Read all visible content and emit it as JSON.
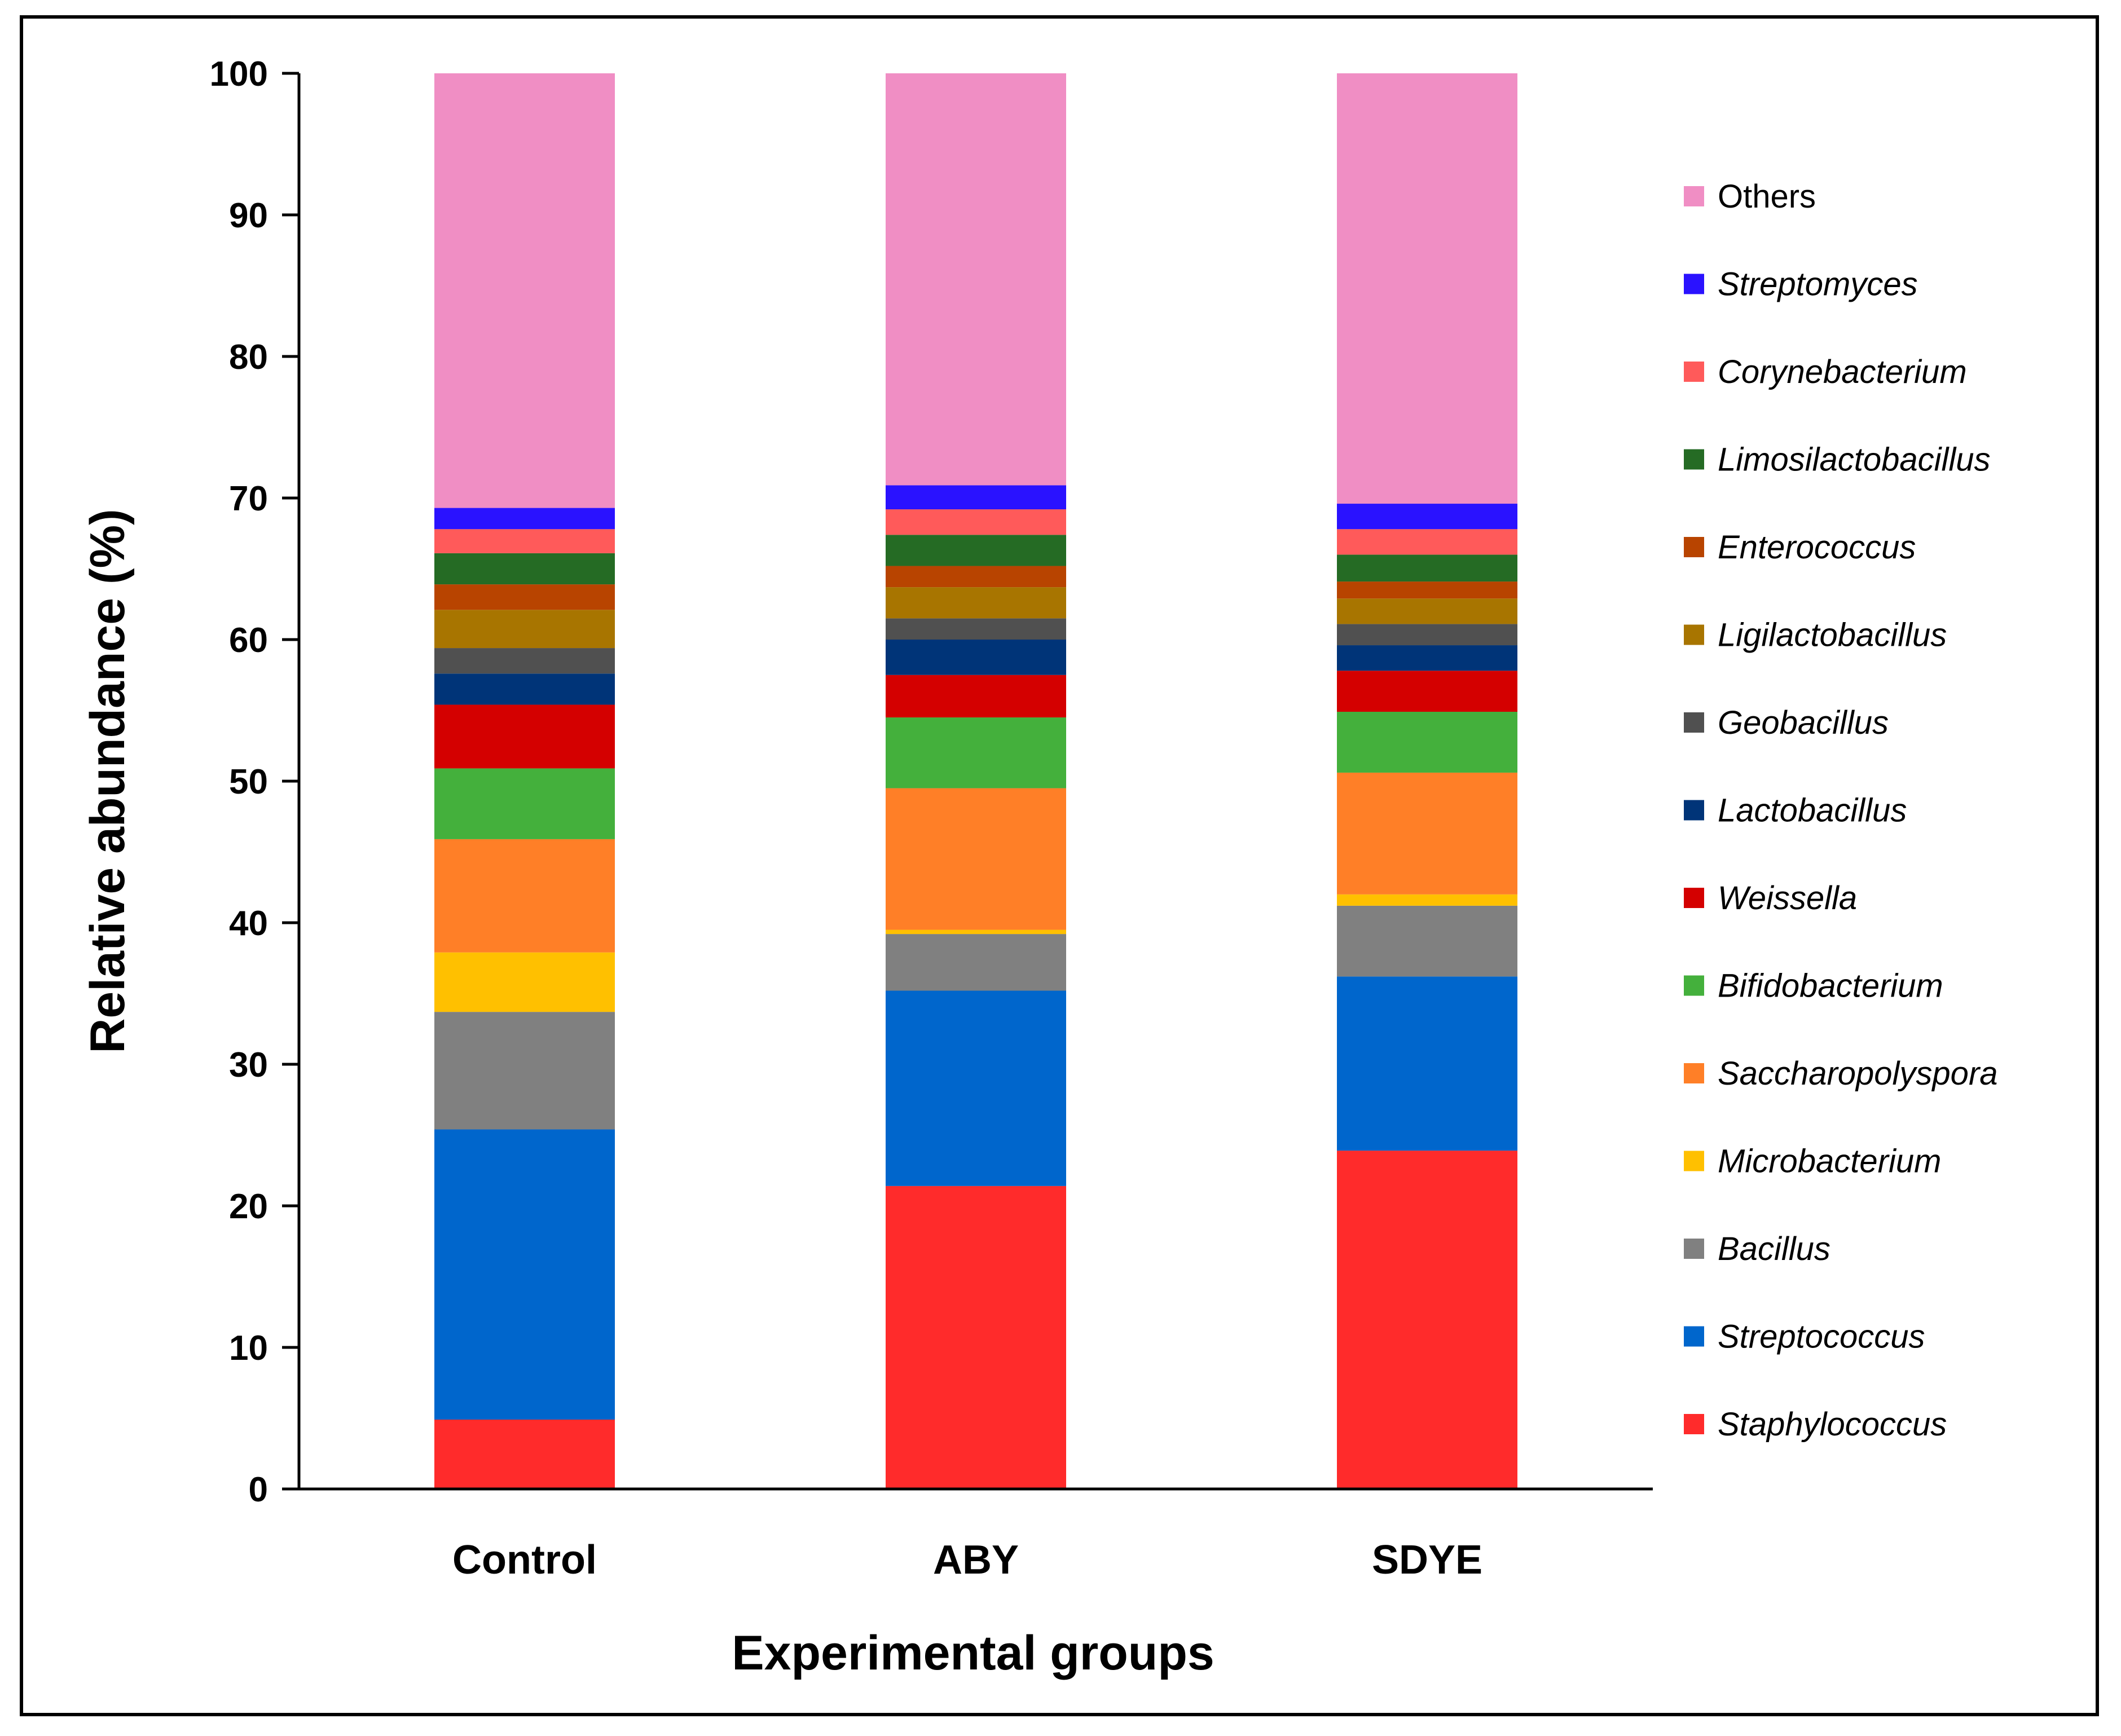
{
  "chart_data": {
    "type": "bar",
    "stacked": true,
    "categories": [
      "Control",
      "ABY",
      "SDYE"
    ],
    "xlabel": "Experimental groups",
    "ylabel": "Relative abundance (%)",
    "ylim": [
      0,
      100
    ],
    "yticks": [
      0,
      10,
      20,
      30,
      40,
      50,
      60,
      70,
      80,
      90,
      100
    ],
    "grid": false,
    "legend_position": "right",
    "series": [
      {
        "name": "Staphylococcus",
        "italic": true,
        "color": "#ff2b2b",
        "values": [
          4.9,
          21.4,
          23.9
        ]
      },
      {
        "name": "Streptococcus",
        "italic": true,
        "color": "#0066cc",
        "values": [
          20.5,
          13.8,
          12.3
        ]
      },
      {
        "name": "Bacillus",
        "italic": true,
        "color": "#808080",
        "values": [
          8.3,
          4.0,
          5.0
        ]
      },
      {
        "name": "Microbacterium",
        "italic": true,
        "color": "#ffc000",
        "values": [
          4.2,
          0.3,
          0.8
        ]
      },
      {
        "name": "Saccharopolyspora",
        "italic": true,
        "color": "#ff7f27",
        "values": [
          8.0,
          10.0,
          8.6
        ]
      },
      {
        "name": "Bifidobacterium",
        "italic": true,
        "color": "#44b03c",
        "values": [
          5.0,
          5.0,
          4.3
        ]
      },
      {
        "name": "Weissella",
        "italic": true,
        "color": "#d40000",
        "values": [
          4.5,
          3.0,
          2.9
        ]
      },
      {
        "name": "Lactobacillus",
        "italic": true,
        "color": "#003478",
        "values": [
          2.2,
          2.5,
          1.8
        ]
      },
      {
        "name": "Geobacillus",
        "italic": true,
        "color": "#505050",
        "values": [
          1.8,
          1.5,
          1.5
        ]
      },
      {
        "name": "Ligilactobacillus",
        "italic": true,
        "color": "#a87500",
        "values": [
          2.7,
          2.2,
          1.8
        ]
      },
      {
        "name": "Enterococcus",
        "italic": true,
        "color": "#b84400",
        "values": [
          1.8,
          1.5,
          1.2
        ]
      },
      {
        "name": "Limosilactobacillus",
        "italic": true,
        "color": "#256b24",
        "values": [
          2.2,
          2.2,
          1.9
        ]
      },
      {
        "name": "Corynebacterium",
        "italic": true,
        "color": "#ff5a5a",
        "values": [
          1.7,
          1.8,
          1.8
        ]
      },
      {
        "name": "Streptomyces",
        "italic": true,
        "color": "#2a12ff",
        "values": [
          1.5,
          1.7,
          1.8
        ]
      },
      {
        "name": "Others",
        "italic": false,
        "color": "#f08ec4",
        "values": [
          30.7,
          29.1,
          30.4
        ]
      }
    ]
  }
}
